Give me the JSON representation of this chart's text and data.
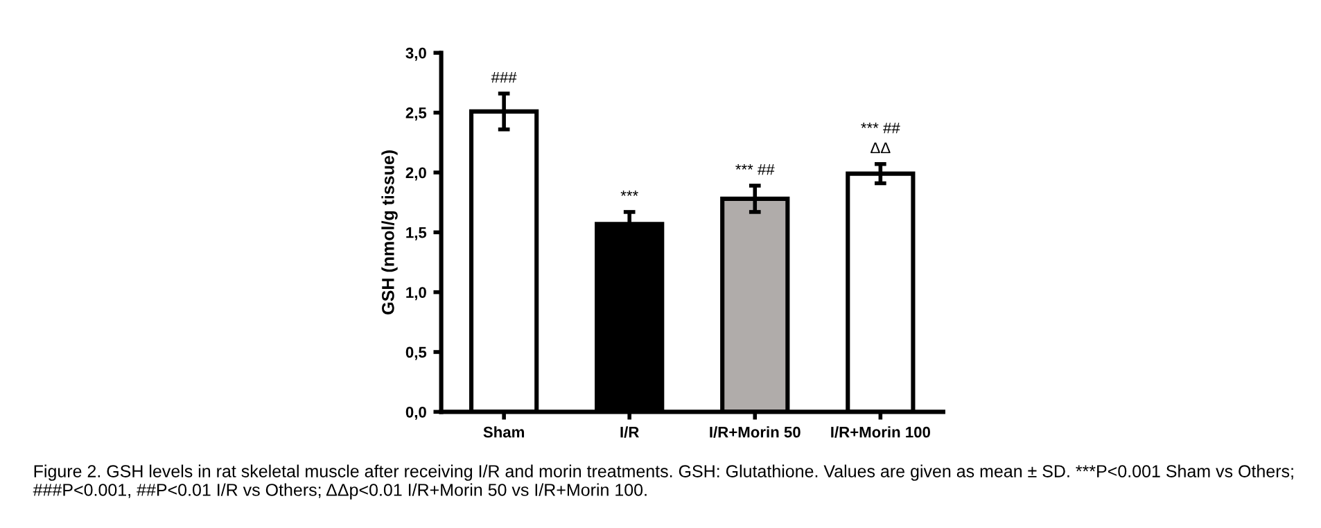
{
  "chart_data": {
    "type": "bar",
    "ylabel": "GSH (nmol/g tissue)",
    "categories": [
      "Sham",
      "I/R",
      "I/R+Morin 50",
      "I/R+Morin 100"
    ],
    "values": [
      2.51,
      1.57,
      1.78,
      1.99
    ],
    "errors": [
      [
        0.15,
        0.15
      ],
      0.1,
      [
        0.11,
        0.11
      ],
      [
        0.08,
        0.08
      ]
    ],
    "colors": [
      "#ffffff",
      "#000000",
      "#b0acaa",
      "#ffffff"
    ],
    "ylim": [
      0,
      3
    ],
    "yticks": [
      {
        "value": 0,
        "label": "0,0"
      },
      {
        "value": 0.5,
        "label": "0,5"
      },
      {
        "value": 1,
        "label": "1,0"
      },
      {
        "value": 1.5,
        "label": "1,5"
      },
      {
        "value": 2,
        "label": "2,0"
      },
      {
        "value": 2.5,
        "label": "2,5"
      },
      {
        "value": 3,
        "label": "3,0"
      }
    ],
    "grid": false,
    "legend": false,
    "annotations": [
      "###",
      "***",
      "*** ##",
      "*** ##\nΔΔ",
      "Figure 2. GSH levels in rat skeletal muscle after receiving I/R and morin treatments. GSH: Glutathione. Values are given as mean ± SD. ***P<0.001 Sham vs Others; ###P<0.001, ##P<0.01 I/R vs Others; ΔΔp<0.01 I/R+Morin 50 vs I/R+Morin 100."
    ]
  }
}
